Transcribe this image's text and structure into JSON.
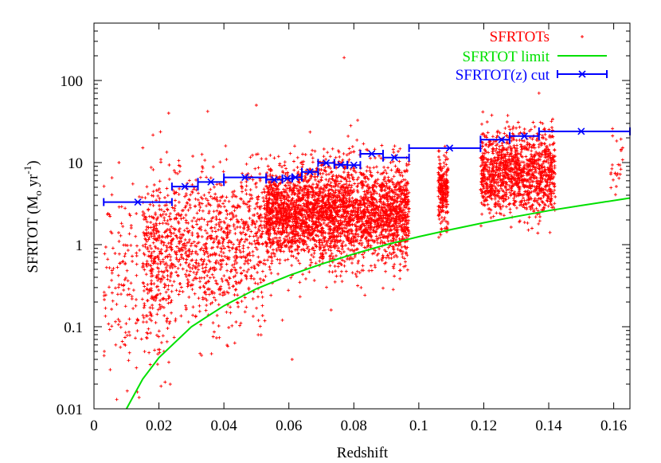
{
  "chart_data": {
    "type": "scatter",
    "xlabel": "Redshift",
    "ylabel": {
      "main": "SFRTOT (M",
      "sub": "o",
      "mid": " yr",
      "sup": "-1",
      "end": ")"
    },
    "xlim": [
      0,
      0.165
    ],
    "ylim": [
      0.01,
      500
    ],
    "y_scale": "log",
    "x_ticks": [
      0,
      0.02,
      0.04,
      0.06,
      0.08,
      0.1,
      0.12,
      0.14,
      0.16
    ],
    "x_tick_labels": [
      "0",
      "0.02",
      "0.04",
      "0.06",
      "0.08",
      "0.1",
      "0.12",
      "0.14",
      "0.16"
    ],
    "y_ticks": [
      0.01,
      0.1,
      1,
      10,
      100
    ],
    "y_tick_labels": [
      "0.01",
      "0.1",
      "1",
      "10",
      "100"
    ],
    "grid": false,
    "legend_position": "top-right",
    "colors": {
      "points": "#ff0000",
      "limit": "#00e000",
      "cut": "#0000ff"
    },
    "series": [
      {
        "name": "SFRTOTs",
        "kind": "points",
        "clusters": [
          {
            "x_range": [
              0.003,
              0.024
            ],
            "y_median": 0.35,
            "y_spread_dex": 0.55,
            "count": 260
          },
          {
            "x_range": [
              0.015,
              0.045
            ],
            "y_median": 0.9,
            "y_spread_dex": 0.45,
            "count": 900
          },
          {
            "x_range": [
              0.045,
              0.053
            ],
            "y_median": 1.2,
            "y_spread_dex": 0.45,
            "count": 250
          },
          {
            "x_range": [
              0.053,
              0.097
            ],
            "y_median": 2.4,
            "y_spread_dex": 0.3,
            "count": 3200
          },
          {
            "x_range": [
              0.106,
              0.109
            ],
            "y_median": 4.5,
            "y_spread_dex": 0.22,
            "count": 220
          },
          {
            "x_range": [
              0.119,
              0.142
            ],
            "y_median": 7.5,
            "y_spread_dex": 0.25,
            "count": 1300
          },
          {
            "x_range": [
              0.159,
              0.163
            ],
            "y_median": 9,
            "y_spread_dex": 0.2,
            "count": 25
          }
        ],
        "outliers": [
          [
            0.077,
            190
          ],
          [
            0.023,
            40
          ],
          [
            0.035,
            42
          ],
          [
            0.05,
            50
          ],
          [
            0.137,
            70
          ],
          [
            0.073,
            0.16
          ],
          [
            0.061,
            0.04
          ],
          [
            0.058,
            0.12
          ],
          [
            0.007,
            0.013
          ],
          [
            0.005,
            0.03
          ]
        ]
      },
      {
        "name": "SFRTOT limit",
        "kind": "line",
        "x": [
          0.01,
          0.015,
          0.02,
          0.03,
          0.04,
          0.05,
          0.06,
          0.07,
          0.08,
          0.09,
          0.1,
          0.11,
          0.12,
          0.13,
          0.14,
          0.15,
          0.165
        ],
        "y": [
          0.01,
          0.023,
          0.042,
          0.1,
          0.18,
          0.29,
          0.42,
          0.58,
          0.77,
          1.0,
          1.25,
          1.53,
          1.85,
          2.2,
          2.6,
          3.0,
          3.7
        ]
      },
      {
        "name": "SFRTOT(z) cut",
        "kind": "errorbars",
        "points": [
          {
            "x": 0.0135,
            "y": 3.3,
            "x_low": 0.003,
            "x_high": 0.024
          },
          {
            "x": 0.028,
            "y": 5.1,
            "x_low": 0.024,
            "x_high": 0.032
          },
          {
            "x": 0.036,
            "y": 5.8,
            "x_low": 0.032,
            "x_high": 0.04
          },
          {
            "x": 0.0465,
            "y": 6.6,
            "x_low": 0.04,
            "x_high": 0.053
          },
          {
            "x": 0.0555,
            "y": 6.2,
            "x_low": 0.053,
            "x_high": 0.058
          },
          {
            "x": 0.0595,
            "y": 6.4,
            "x_low": 0.058,
            "x_high": 0.061
          },
          {
            "x": 0.062,
            "y": 6.6,
            "x_low": 0.061,
            "x_high": 0.064
          },
          {
            "x": 0.0665,
            "y": 7.7,
            "x_low": 0.064,
            "x_high": 0.069
          },
          {
            "x": 0.0715,
            "y": 9.9,
            "x_low": 0.069,
            "x_high": 0.074
          },
          {
            "x": 0.076,
            "y": 9.4,
            "x_low": 0.074,
            "x_high": 0.078
          },
          {
            "x": 0.08,
            "y": 9.3,
            "x_low": 0.078,
            "x_high": 0.082
          },
          {
            "x": 0.0855,
            "y": 12.8,
            "x_low": 0.082,
            "x_high": 0.089
          },
          {
            "x": 0.0925,
            "y": 11.5,
            "x_low": 0.089,
            "x_high": 0.097
          },
          {
            "x": 0.1095,
            "y": 15,
            "x_low": 0.097,
            "x_high": 0.119
          },
          {
            "x": 0.1255,
            "y": 19,
            "x_low": 0.119,
            "x_high": 0.128
          },
          {
            "x": 0.1325,
            "y": 21,
            "x_low": 0.128,
            "x_high": 0.137
          },
          {
            "x": 0.15,
            "y": 24,
            "x_low": 0.137,
            "x_high": 0.165
          }
        ]
      }
    ]
  }
}
